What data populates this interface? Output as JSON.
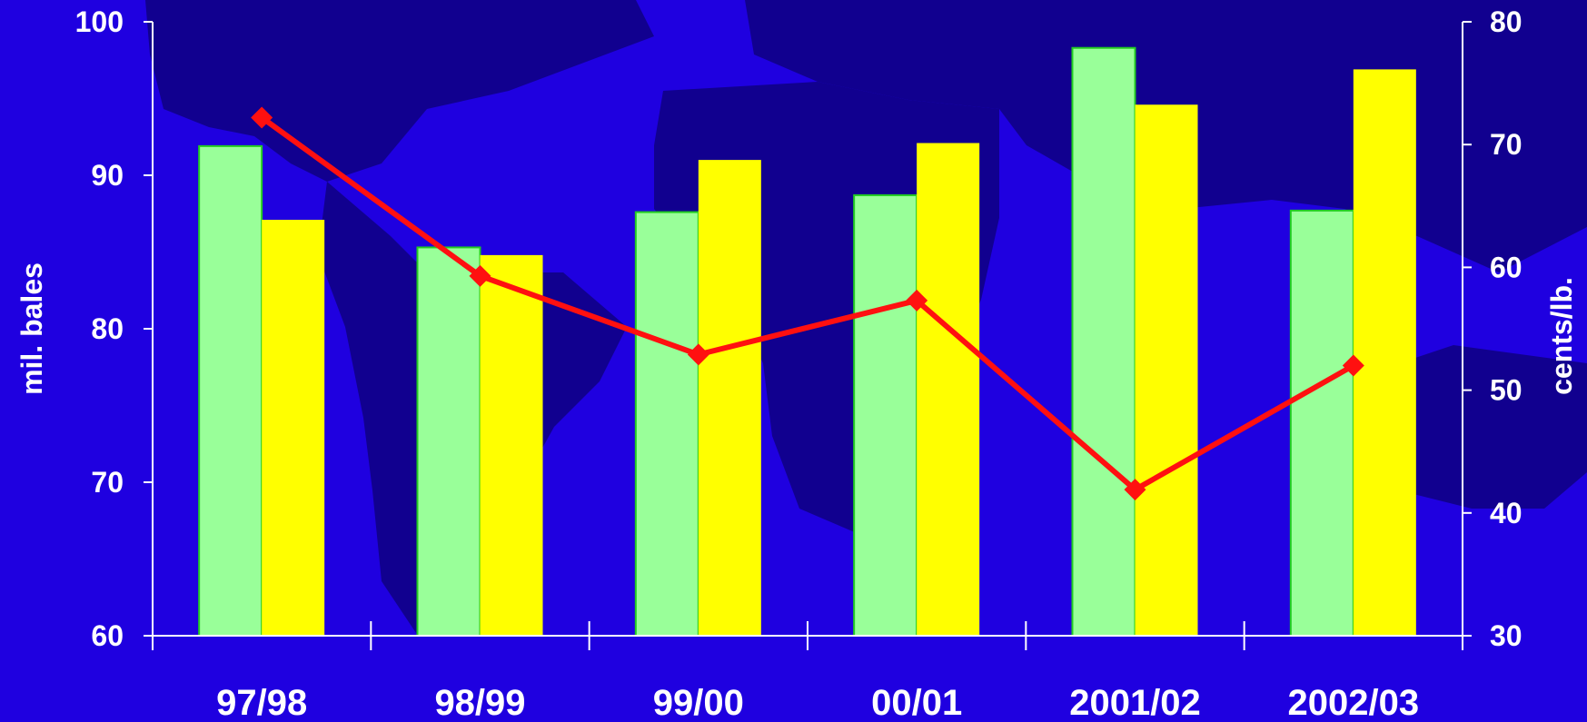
{
  "colors": {
    "background": "#1f00e0",
    "land": "#11008f",
    "series1": "#99ff99",
    "series1_border": "#22cc22",
    "series2": "#ffff00",
    "line": "#ff1010",
    "text": "#ffffff"
  },
  "chart_data": {
    "type": "bar",
    "title": "",
    "ylabel": "mil. bales",
    "y2label": "cents/lb.",
    "categories": [
      "97/98",
      "98/99",
      "99/00",
      "00/01",
      "2001/02",
      "2002/03"
    ],
    "ylim": [
      60,
      100
    ],
    "y2lim": [
      30,
      80
    ],
    "yticks": [
      60,
      70,
      80,
      90,
      100
    ],
    "y2ticks": [
      30,
      40,
      50,
      60,
      70,
      80
    ],
    "grid": false,
    "series": [
      {
        "type": "bar",
        "axis": "left",
        "values": [
          91.9,
          85.3,
          87.6,
          88.7,
          98.3,
          87.7
        ]
      },
      {
        "type": "bar",
        "axis": "left",
        "values": [
          87.1,
          84.8,
          91.0,
          92.1,
          94.6,
          96.9
        ]
      },
      {
        "type": "line",
        "axis": "right",
        "values": [
          72.2,
          59.3,
          52.9,
          57.3,
          41.9,
          52.0
        ]
      }
    ]
  }
}
